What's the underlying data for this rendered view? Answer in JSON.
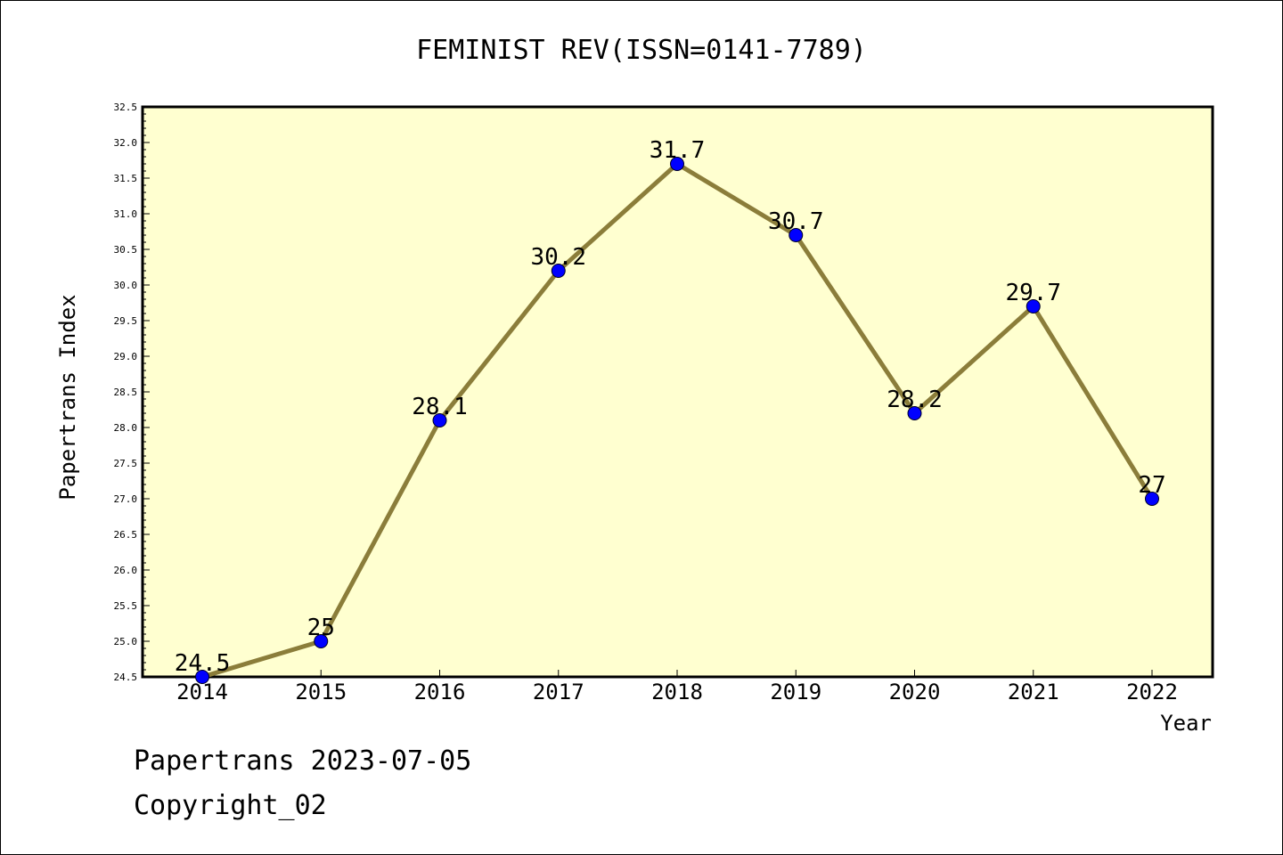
{
  "chart_data": {
    "type": "line",
    "title": "FEMINIST REV(ISSN=0141-7789)",
    "xlabel": "Year",
    "ylabel": "Papertrans Index",
    "categories": [
      "2014",
      "2015",
      "2016",
      "2017",
      "2018",
      "2019",
      "2020",
      "2021",
      "2022"
    ],
    "series": [
      {
        "values": [
          24.5,
          25,
          28.1,
          30.2,
          31.7,
          30.7,
          28.2,
          29.7,
          27
        ],
        "data_labels": [
          "24.5",
          "25",
          "28.1",
          "30.2",
          "31.7",
          "30.7",
          "28.2",
          "29.7",
          "27"
        ]
      }
    ],
    "ylim": [
      24.5,
      32.5
    ],
    "yticks": [
      "24.5",
      "25.0",
      "25.5",
      "26.0",
      "26.5",
      "27.0",
      "27.5",
      "28.0",
      "28.5",
      "29.0",
      "29.5",
      "30.0",
      "30.5",
      "31.0",
      "31.5",
      "32.0",
      "32.5"
    ],
    "grid": false,
    "legend": "none",
    "colors": {
      "plot_background": "#ffffd0",
      "line": "#8b7d3a",
      "marker": "#0000ff",
      "axis": "#000000"
    }
  },
  "footer": {
    "line1": "Papertrans 2023-07-05",
    "line2": "Copyright_02"
  }
}
